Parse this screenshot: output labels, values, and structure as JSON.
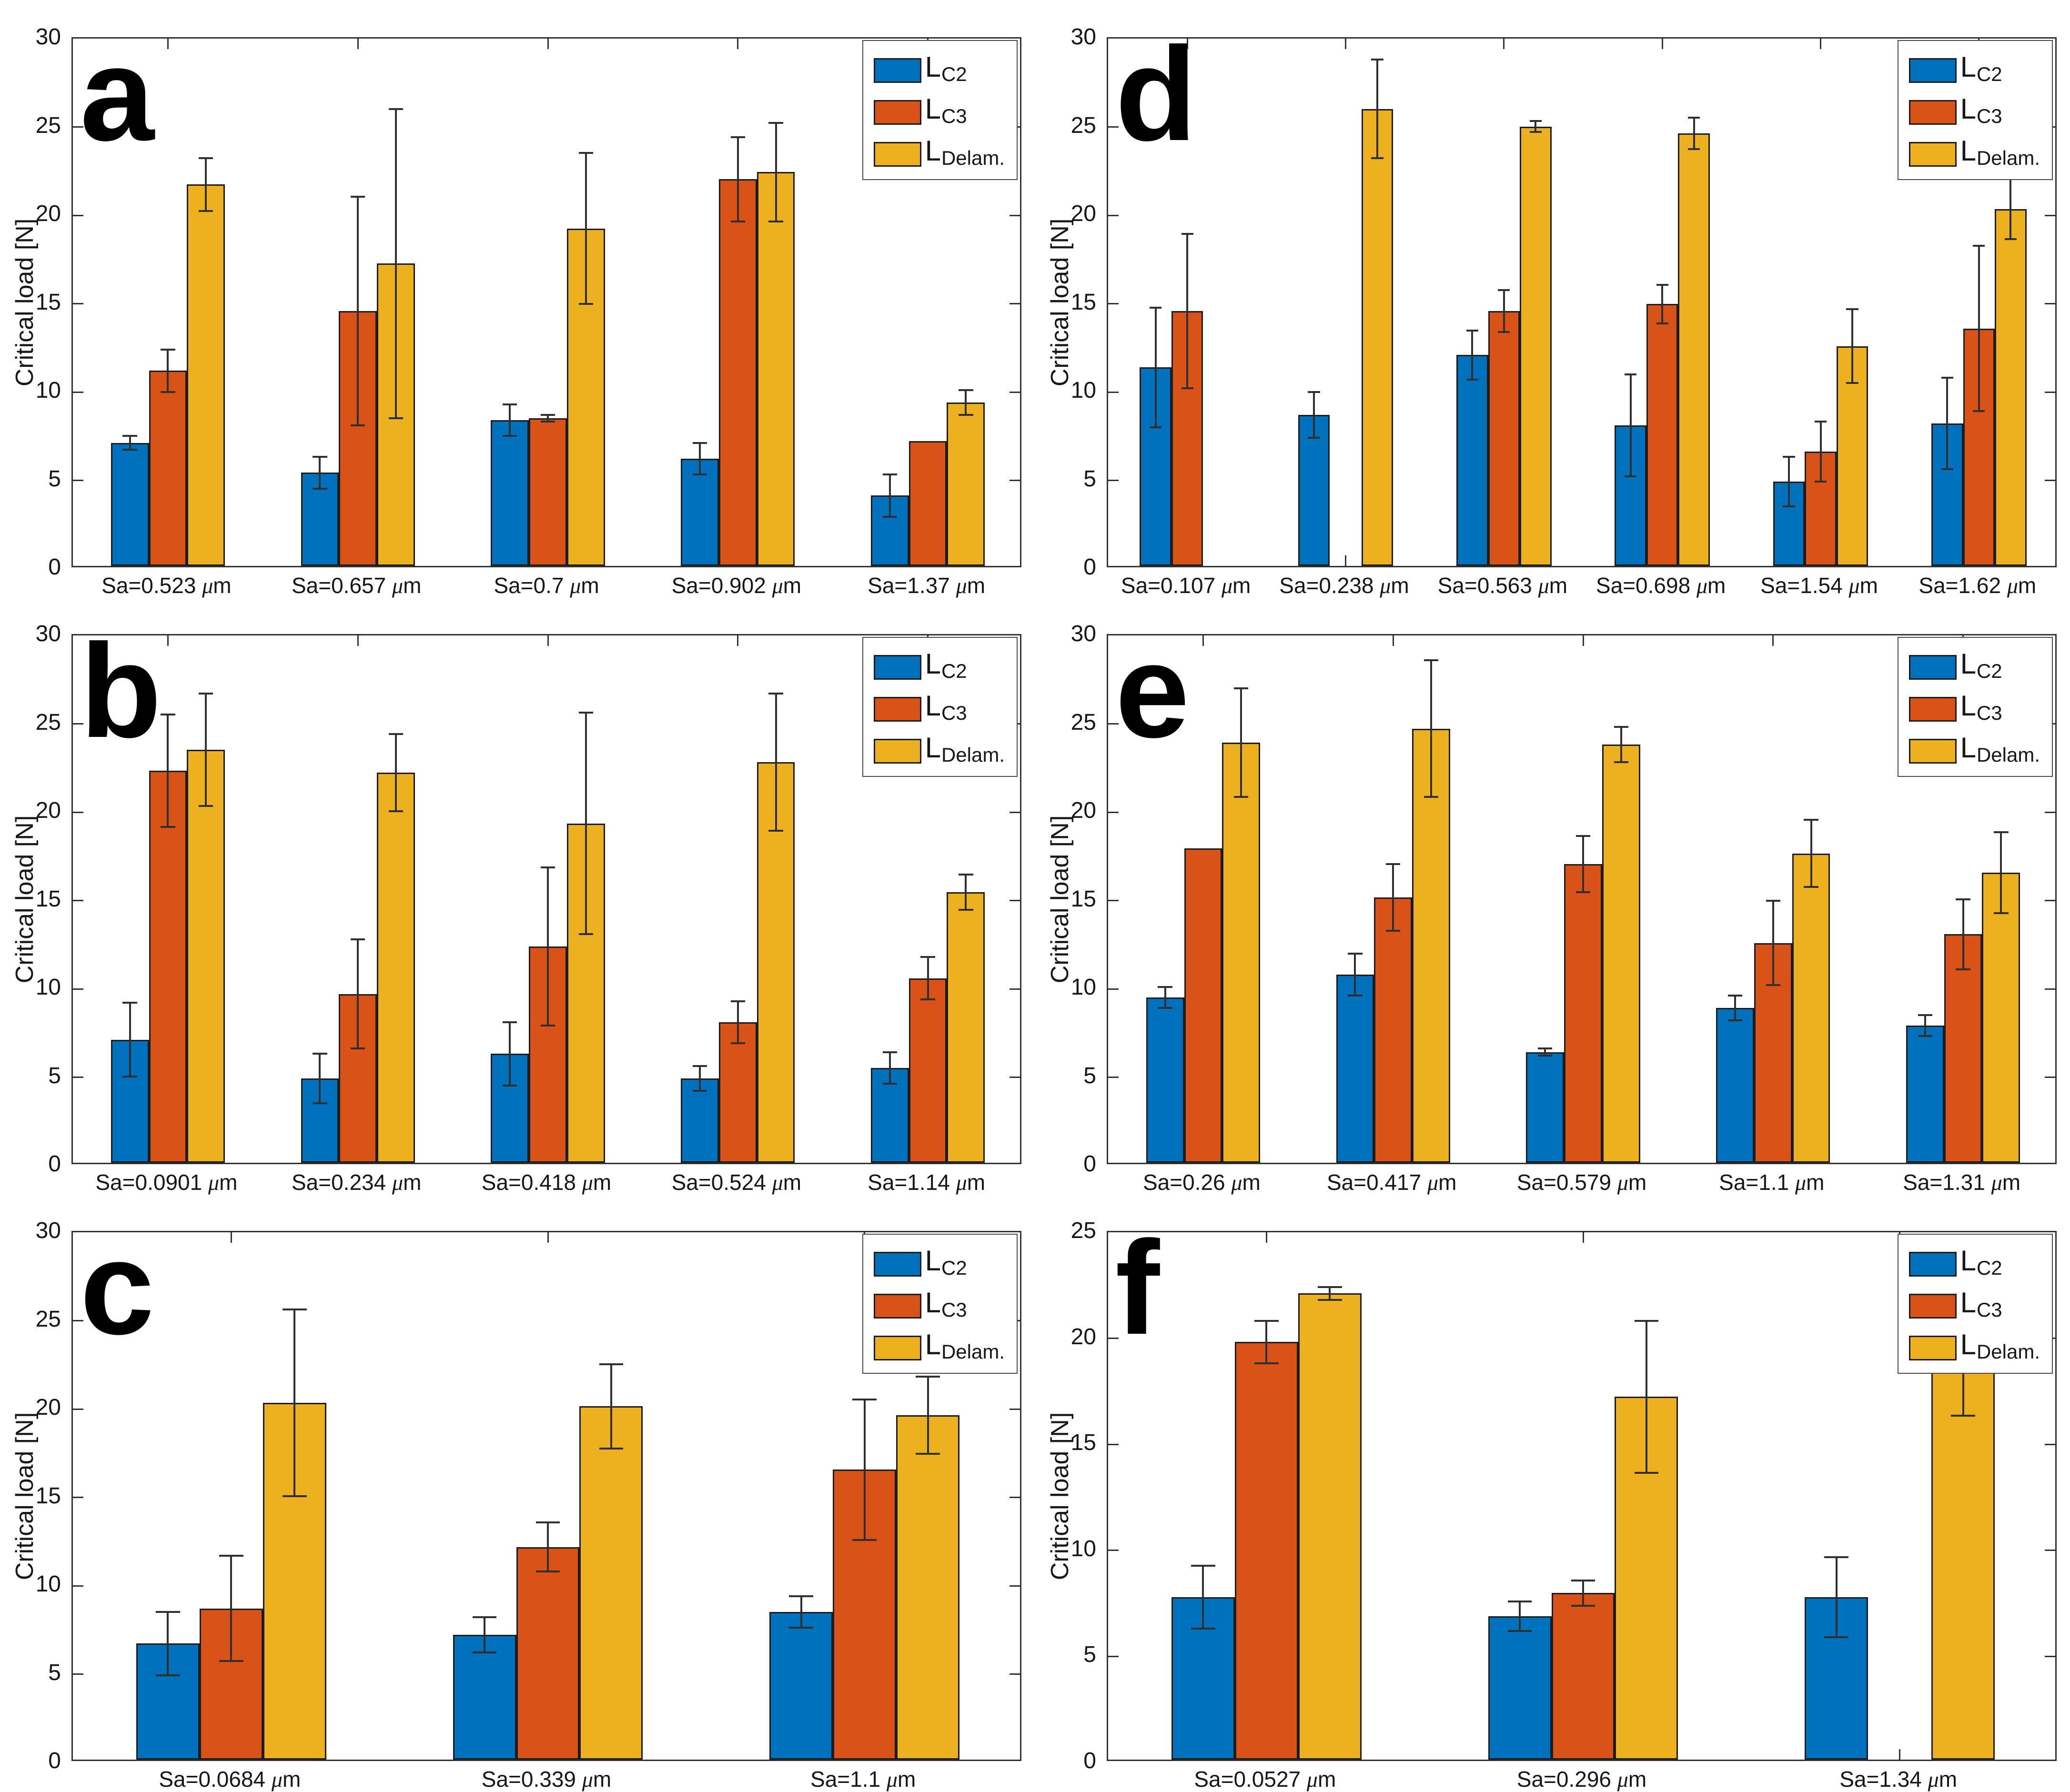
{
  "figure": {
    "background": "#ffffff",
    "axis_color": "#333333",
    "bar_edge_color": "#1c1c1c",
    "error_bar_color": "#2f2f2f",
    "series_colors": [
      "#0072BD",
      "#D95319",
      "#EDB120"
    ],
    "legend": [
      {
        "base": "L",
        "sub": "C2"
      },
      {
        "base": "L",
        "sub": "C3"
      },
      {
        "base": "L",
        "sub": "Delam."
      }
    ],
    "ylabel": "Critical load [N]"
  },
  "chart_data": [
    {
      "panel": "a",
      "type": "bar",
      "ylabel": "Critical load [N]",
      "ylim": [
        0,
        30
      ],
      "yticks": [
        0,
        5,
        10,
        15,
        20,
        25,
        30
      ],
      "legend_position": "top-right",
      "grid": false,
      "categories": [
        "Sa=0.523 μm",
        "Sa=0.657 μm",
        "Sa=0.7 μm",
        "Sa=0.902 μm",
        "Sa=1.37 μm"
      ],
      "series": [
        {
          "name": "L_C2",
          "values": [
            7.0,
            5.3,
            8.3,
            6.1,
            4.0
          ],
          "err": [
            0.4,
            0.9,
            0.9,
            0.9,
            1.2
          ]
        },
        {
          "name": "L_C3",
          "values": [
            11.1,
            14.5,
            8.4,
            22.0,
            7.1
          ],
          "err": [
            1.2,
            6.5,
            0.2,
            2.4,
            null
          ]
        },
        {
          "name": "L_Delam.",
          "values": [
            21.7,
            17.2,
            19.2,
            22.4,
            9.3
          ],
          "err": [
            1.5,
            8.8,
            4.3,
            2.8,
            0.7
          ]
        }
      ]
    },
    {
      "panel": "b",
      "type": "bar",
      "ylabel": "Critical load [N]",
      "ylim": [
        0,
        30
      ],
      "yticks": [
        0,
        5,
        10,
        15,
        20,
        25,
        30
      ],
      "legend_position": "top-right",
      "grid": false,
      "categories": [
        "Sa=0.0901 μm",
        "Sa=0.234 μm",
        "Sa=0.418 μm",
        "Sa=0.524 μm",
        "Sa=1.14 μm"
      ],
      "series": [
        {
          "name": "L_C2",
          "values": [
            7.0,
            4.8,
            6.2,
            4.8,
            5.4
          ],
          "err": [
            2.1,
            1.4,
            1.8,
            0.7,
            0.9
          ]
        },
        {
          "name": "L_C3",
          "values": [
            22.3,
            9.6,
            12.3,
            8.0,
            10.5
          ],
          "err": [
            3.2,
            3.1,
            4.5,
            1.2,
            1.2
          ]
        },
        {
          "name": "L_Delam.",
          "values": [
            23.5,
            22.2,
            19.3,
            22.8,
            15.4
          ],
          "err": [
            3.2,
            2.2,
            6.3,
            3.9,
            1.0
          ]
        }
      ]
    },
    {
      "panel": "c",
      "type": "bar",
      "ylabel": "Critical load [N]",
      "ylim": [
        0,
        30
      ],
      "yticks": [
        0,
        5,
        10,
        15,
        20,
        25,
        30
      ],
      "legend_position": "top-right",
      "grid": false,
      "categories": [
        "Sa=0.0684 μm",
        "Sa=0.339 μm",
        "Sa=1.1 μm"
      ],
      "series": [
        {
          "name": "L_C2",
          "values": [
            6.6,
            7.1,
            8.4
          ],
          "err": [
            1.8,
            1.0,
            0.9
          ]
        },
        {
          "name": "L_C3",
          "values": [
            8.6,
            12.1,
            16.5
          ],
          "err": [
            3.0,
            1.4,
            4.0
          ]
        },
        {
          "name": "L_Delam.",
          "values": [
            20.3,
            20.1,
            19.6
          ],
          "err": [
            5.3,
            2.4,
            2.2
          ]
        }
      ]
    },
    {
      "panel": "d",
      "type": "bar",
      "ylabel": "Critical load [N]",
      "ylim": [
        0,
        30
      ],
      "yticks": [
        0,
        5,
        10,
        15,
        20,
        25,
        30
      ],
      "legend_position": "top-right",
      "grid": false,
      "categories": [
        "Sa=0.107 μm",
        "Sa=0.238 μm",
        "Sa=0.563 μm",
        "Sa=0.698 μm",
        "Sa=1.54 μm",
        "Sa=1.62 μm"
      ],
      "series": [
        {
          "name": "L_C2",
          "values": [
            11.3,
            8.6,
            12.0,
            8.0,
            4.8,
            8.1
          ],
          "err": [
            3.4,
            1.3,
            1.4,
            2.9,
            1.4,
            2.6
          ]
        },
        {
          "name": "L_C3",
          "values": [
            14.5,
            null,
            14.5,
            14.9,
            6.5,
            13.5
          ],
          "err": [
            4.4,
            null,
            1.2,
            1.1,
            1.7,
            4.7
          ]
        },
        {
          "name": "L_Delam.",
          "values": [
            null,
            26.0,
            25.0,
            24.6,
            12.5,
            20.3
          ],
          "err": [
            null,
            2.8,
            0.3,
            0.9,
            2.1,
            1.7
          ]
        }
      ]
    },
    {
      "panel": "e",
      "type": "bar",
      "ylabel": "Critical load [N]",
      "ylim": [
        0,
        30
      ],
      "yticks": [
        0,
        5,
        10,
        15,
        20,
        25,
        30
      ],
      "legend_position": "top-right",
      "grid": false,
      "categories": [
        "Sa=0.26 μm",
        "Sa=0.417 μm",
        "Sa=0.579 μm",
        "Sa=1.1 μm",
        "Sa=1.31 μm"
      ],
      "series": [
        {
          "name": "L_C2",
          "values": [
            9.4,
            10.7,
            6.3,
            8.8,
            7.8
          ],
          "err": [
            0.6,
            1.2,
            0.2,
            0.7,
            0.6
          ]
        },
        {
          "name": "L_C3",
          "values": [
            17.9,
            15.1,
            17.0,
            12.5,
            13.0
          ],
          "err": [
            null,
            1.9,
            1.6,
            2.4,
            2.0
          ]
        },
        {
          "name": "L_Delam.",
          "values": [
            23.9,
            24.7,
            23.8,
            17.6,
            16.5
          ],
          "err": [
            3.1,
            3.9,
            1.0,
            1.9,
            2.3
          ]
        }
      ]
    },
    {
      "panel": "f",
      "type": "bar",
      "ylabel": "Critical load [N]",
      "ylim": [
        0,
        25
      ],
      "yticks": [
        0,
        5,
        10,
        15,
        20,
        25
      ],
      "legend_position": "top-right",
      "grid": false,
      "categories": [
        "Sa=0.0527 μm",
        "Sa=0.296 μm",
        "Sa=1.34 μm"
      ],
      "series": [
        {
          "name": "L_C2",
          "values": [
            7.7,
            6.8,
            7.7
          ],
          "err": [
            1.5,
            0.7,
            1.9
          ]
        },
        {
          "name": "L_C3",
          "values": [
            19.8,
            7.9,
            null
          ],
          "err": [
            1.0,
            0.6,
            null
          ]
        },
        {
          "name": "L_Delam.",
          "values": [
            22.1,
            17.2,
            19.4
          ],
          "err": [
            0.3,
            3.6,
            3.1
          ]
        }
      ]
    }
  ]
}
